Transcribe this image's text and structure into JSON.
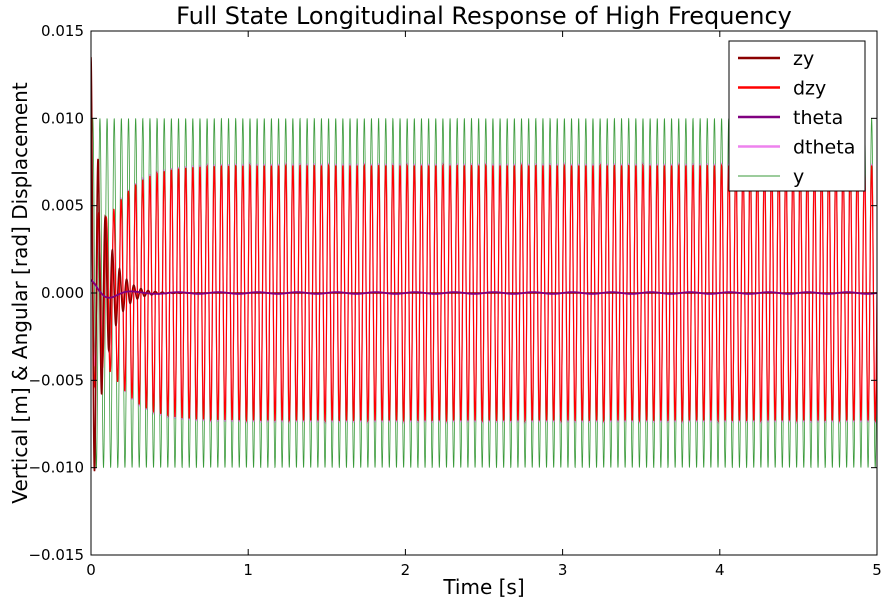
{
  "chart_data": {
    "type": "line",
    "title": "Full State Longitudinal Response of High Frequency",
    "xlabel": "Time [s]",
    "ylabel": "Vertical [m] & Angular [rad] Displacement",
    "xlim": [
      0,
      5
    ],
    "ylim": [
      -0.015,
      0.015
    ],
    "xticks": [
      0,
      1,
      2,
      3,
      4,
      5
    ],
    "xtick_labels": [
      "0",
      "1",
      "2",
      "3",
      "4",
      "5"
    ],
    "yticks": [
      -0.015,
      -0.01,
      -0.005,
      0.0,
      0.005,
      0.01,
      0.015
    ],
    "ytick_labels": [
      "−0.015",
      "−0.010",
      "−0.005",
      "0.000",
      "0.005",
      "0.010",
      "0.015"
    ],
    "grid": false,
    "legend_position": "top-right",
    "series": [
      {
        "name": "zy",
        "color": "#8b0000",
        "model": "transient_oscillation",
        "frequency_hz": 22,
        "initial_amplitude": 0.0135,
        "decay_time_constant": 0.08,
        "steady_amplitude": 0.0
      },
      {
        "name": "dzy",
        "color": "#ff0000",
        "model": "transient_oscillation",
        "frequency_hz": 22,
        "initial_amplitude": 0.014,
        "decay_time_constant": 0.1,
        "steady_amplitude": 0.0073
      },
      {
        "name": "theta",
        "color": "#800080",
        "model": "transient_oscillation",
        "frequency_hz": 4,
        "initial_amplitude": 0.0008,
        "decay_time_constant": 0.12,
        "steady_amplitude": 5e-05
      },
      {
        "name": "dtheta",
        "color": "#ee82ee",
        "model": "transient_oscillation",
        "frequency_hz": 22,
        "initial_amplitude": 0.0125,
        "decay_time_constant": 0.1,
        "steady_amplitude": 0.0074
      },
      {
        "name": "y",
        "color": "#3a9a3a",
        "model": "sine",
        "frequency_hz": 22,
        "amplitude": 0.01
      }
    ]
  }
}
